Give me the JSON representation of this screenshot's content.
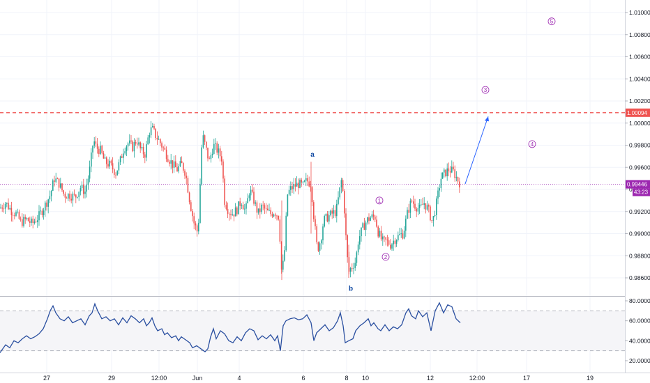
{
  "chart_data": [
    {
      "type": "candlestick",
      "ylim": [
        0.9845,
        1.011
      ],
      "y_ticks": [
        "1.01000",
        "1.00800",
        "1.00600",
        "1.00400",
        "1.00200",
        "1.00000",
        "0.99800",
        "0.99600",
        "0.99400",
        "0.99200",
        "0.99000",
        "0.98800",
        "0.98600"
      ],
      "x_ticks": [
        "27",
        "29",
        "12:00",
        "Jun",
        "4",
        "6",
        "8",
        "10",
        "12",
        "12:00",
        "17",
        "19"
      ],
      "colors": {
        "up": "#26a69a",
        "down": "#ef5350",
        "resistance": "#ef5350",
        "current": "#9c27b0",
        "projection": "#2962ff"
      },
      "resistance_level": {
        "value": 1.00094,
        "label": "1.00094"
      },
      "current_price": {
        "value": 0.99446,
        "label": "0.99446",
        "countdown": "43:23"
      },
      "grid": true,
      "wave_labels": [
        {
          "text": "1",
          "price": 0.993
        },
        {
          "text": "2",
          "price": 0.9879
        },
        {
          "text": "3",
          "price": 1.003
        },
        {
          "text": "4",
          "price": 0.9981
        },
        {
          "text": "5",
          "price": 1.0092
        }
      ],
      "abc_labels": [
        {
          "text": "a",
          "price": 0.9972
        },
        {
          "text": "b",
          "price": 0.9851
        }
      ],
      "projection": {
        "from": 0.9945,
        "to": 1.0006
      },
      "series_path": [
        [
          0,
          0.9923
        ],
        [
          8,
          0.9928
        ],
        [
          16,
          0.9921
        ],
        [
          23,
          0.9918
        ],
        [
          30,
          0.991
        ],
        [
          38,
          0.9913
        ],
        [
          46,
          0.9909
        ],
        [
          55,
          0.9915
        ],
        [
          64,
          0.9925
        ],
        [
          72,
          0.9935
        ],
        [
          78,
          0.995
        ],
        [
          85,
          0.9945
        ],
        [
          92,
          0.9935
        ],
        [
          100,
          0.9935
        ],
        [
          108,
          0.9933
        ],
        [
          115,
          0.9942
        ],
        [
          122,
          0.9938
        ],
        [
          128,
          0.9955
        ],
        [
          134,
          0.9985
        ],
        [
          138,
          0.9978
        ],
        [
          144,
          0.9975
        ],
        [
          150,
          0.9965
        ],
        [
          158,
          0.9962
        ],
        [
          166,
          0.9955
        ],
        [
          172,
          0.9965
        ],
        [
          178,
          0.9978
        ],
        [
          184,
          0.9982
        ],
        [
          190,
          0.9978
        ],
        [
          196,
          0.9985
        ],
        [
          202,
          0.9975
        ],
        [
          208,
          0.9972
        ],
        [
          214,
          0.9992
        ],
        [
          218,
          0.9995
        ],
        [
          224,
          0.9988
        ],
        [
          230,
          0.9982
        ],
        [
          236,
          0.9975
        ],
        [
          242,
          0.9968
        ],
        [
          248,
          0.9962
        ],
        [
          254,
          0.9958
        ],
        [
          260,
          0.9963
        ],
        [
          266,
          0.9955
        ],
        [
          272,
          0.993
        ],
        [
          278,
          0.991
        ],
        [
          284,
          0.99
        ],
        [
          290,
          0.999
        ],
        [
          296,
          0.9975
        ],
        [
          300,
          0.9965
        ],
        [
          306,
          0.998
        ],
        [
          312,
          0.9975
        ],
        [
          318,
          0.9968
        ],
        [
          322,
          0.993
        ],
        [
          328,
          0.992
        ],
        [
          334,
          0.9918
        ],
        [
          340,
          0.9922
        ],
        [
          346,
          0.993
        ],
        [
          352,
          0.992
        ],
        [
          358,
          0.994
        ],
        [
          364,
          0.993
        ],
        [
          370,
          0.9918
        ],
        [
          376,
          0.9925
        ],
        [
          382,
          0.992
        ],
        [
          388,
          0.9918
        ],
        [
          394,
          0.992
        ],
        [
          400,
          0.9915
        ],
        [
          404,
          0.9862
        ],
        [
          408,
          0.9885
        ],
        [
          412,
          0.9935
        ],
        [
          416,
          0.994
        ],
        [
          422,
          0.9943
        ],
        [
          428,
          0.9945
        ],
        [
          434,
          0.9943
        ],
        [
          440,
          0.9948
        ],
        [
          446,
          0.9945
        ],
        [
          450,
          0.9915
        ],
        [
          455,
          0.9885
        ],
        [
          460,
          0.9895
        ],
        [
          464,
          0.9912
        ],
        [
          470,
          0.9915
        ],
        [
          476,
          0.9918
        ],
        [
          482,
          0.992
        ],
        [
          486,
          0.9935
        ],
        [
          490,
          0.995
        ],
        [
          494,
          0.992
        ],
        [
          497,
          0.9885
        ],
        [
          500,
          0.9865
        ],
        [
          504,
          0.987
        ],
        [
          510,
          0.9875
        ],
        [
          514,
          0.9895
        ],
        [
          520,
          0.9905
        ],
        [
          526,
          0.9912
        ],
        [
          532,
          0.9915
        ],
        [
          538,
          0.9915
        ],
        [
          542,
          0.9902
        ],
        [
          548,
          0.9893
        ],
        [
          554,
          0.9893
        ],
        [
          560,
          0.989
        ],
        [
          566,
          0.9895
        ],
        [
          572,
          0.9898
        ],
        [
          578,
          0.99
        ],
        [
          584,
          0.9918
        ],
        [
          590,
          0.993
        ],
        [
          596,
          0.9925
        ],
        [
          602,
          0.9922
        ],
        [
          608,
          0.9928
        ],
        [
          614,
          0.9922
        ],
        [
          620,
          0.991
        ],
        [
          626,
          0.9928
        ],
        [
          632,
          0.995
        ],
        [
          638,
          0.9955
        ],
        [
          644,
          0.9958
        ],
        [
          650,
          0.9956
        ],
        [
          655,
          0.995
        ],
        [
          660,
          0.9945
        ]
      ]
    },
    {
      "type": "line",
      "ylim": [
        10,
        85
      ],
      "y_ticks": [
        "80.0000",
        "60.0000",
        "40.0000",
        "20.0000"
      ],
      "bands": [
        70,
        30
      ],
      "color": "#2a4fa0",
      "series_path": [
        [
          0,
          28
        ],
        [
          8,
          36
        ],
        [
          14,
          33
        ],
        [
          20,
          40
        ],
        [
          26,
          38
        ],
        [
          32,
          42
        ],
        [
          38,
          45
        ],
        [
          44,
          42
        ],
        [
          50,
          44
        ],
        [
          56,
          47
        ],
        [
          62,
          52
        ],
        [
          68,
          62
        ],
        [
          72,
          70
        ],
        [
          76,
          75
        ],
        [
          80,
          68
        ],
        [
          86,
          62
        ],
        [
          92,
          60
        ],
        [
          98,
          64
        ],
        [
          104,
          58
        ],
        [
          110,
          60
        ],
        [
          116,
          62
        ],
        [
          122,
          56
        ],
        [
          128,
          65
        ],
        [
          132,
          68
        ],
        [
          136,
          77
        ],
        [
          140,
          70
        ],
        [
          146,
          62
        ],
        [
          152,
          64
        ],
        [
          158,
          60
        ],
        [
          164,
          62
        ],
        [
          170,
          56
        ],
        [
          176,
          63
        ],
        [
          182,
          58
        ],
        [
          188,
          65
        ],
        [
          194,
          62
        ],
        [
          200,
          58
        ],
        [
          206,
          62
        ],
        [
          210,
          55
        ],
        [
          214,
          58
        ],
        [
          218,
          63
        ],
        [
          222,
          55
        ],
        [
          226,
          50
        ],
        [
          232,
          52
        ],
        [
          236,
          46
        ],
        [
          240,
          48
        ],
        [
          246,
          43
        ],
        [
          252,
          45
        ],
        [
          256,
          40
        ],
        [
          260,
          44
        ],
        [
          266,
          41
        ],
        [
          272,
          38
        ],
        [
          276,
          33
        ],
        [
          282,
          35
        ],
        [
          288,
          32
        ],
        [
          294,
          29
        ],
        [
          298,
          32
        ],
        [
          302,
          44
        ],
        [
          306,
          52
        ],
        [
          310,
          42
        ],
        [
          316,
          50
        ],
        [
          322,
          47
        ],
        [
          328,
          40
        ],
        [
          334,
          38
        ],
        [
          340,
          44
        ],
        [
          346,
          40
        ],
        [
          352,
          48
        ],
        [
          358,
          52
        ],
        [
          364,
          50
        ],
        [
          370,
          41
        ],
        [
          376,
          45
        ],
        [
          382,
          42
        ],
        [
          388,
          46
        ],
        [
          394,
          40
        ],
        [
          398,
          45
        ],
        [
          402,
          30
        ],
        [
          406,
          55
        ],
        [
          410,
          60
        ],
        [
          416,
          62
        ],
        [
          422,
          63
        ],
        [
          428,
          61
        ],
        [
          434,
          62
        ],
        [
          440,
          66
        ],
        [
          446,
          58
        ],
        [
          450,
          40
        ],
        [
          454,
          48
        ],
        [
          460,
          52
        ],
        [
          466,
          56
        ],
        [
          472,
          50
        ],
        [
          478,
          53
        ],
        [
          484,
          60
        ],
        [
          488,
          68
        ],
        [
          492,
          55
        ],
        [
          495,
          38
        ],
        [
          500,
          40
        ],
        [
          506,
          42
        ],
        [
          510,
          50
        ],
        [
          516,
          55
        ],
        [
          522,
          58
        ],
        [
          528,
          62
        ],
        [
          532,
          55
        ],
        [
          536,
          58
        ],
        [
          542,
          52
        ],
        [
          546,
          50
        ],
        [
          552,
          56
        ],
        [
          558,
          50
        ],
        [
          564,
          54
        ],
        [
          570,
          52
        ],
        [
          576,
          56
        ],
        [
          582,
          68
        ],
        [
          586,
          72
        ],
        [
          590,
          65
        ],
        [
          596,
          62
        ],
        [
          600,
          70
        ],
        [
          606,
          64
        ],
        [
          612,
          68
        ],
        [
          618,
          50
        ],
        [
          624,
          70
        ],
        [
          630,
          78
        ],
        [
          636,
          68
        ],
        [
          642,
          76
        ],
        [
          648,
          74
        ],
        [
          654,
          62
        ],
        [
          660,
          58
        ]
      ]
    }
  ]
}
